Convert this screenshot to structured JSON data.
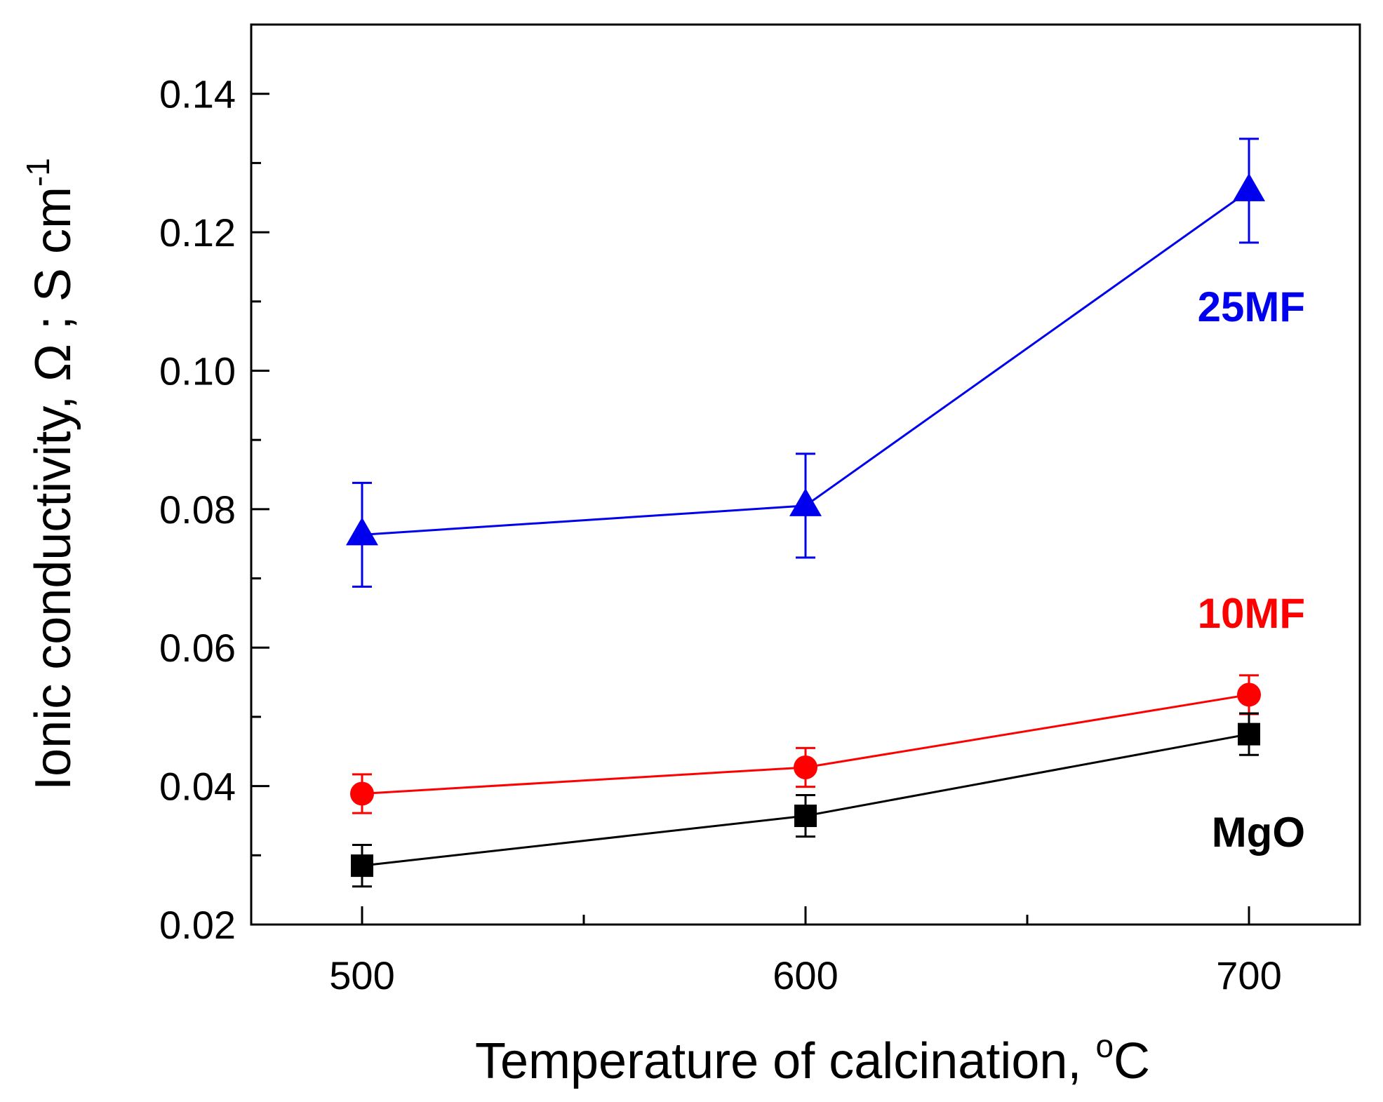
{
  "chart_data": {
    "type": "line",
    "x": [
      500,
      600,
      700
    ],
    "xlim": [
      475,
      725
    ],
    "ylim": [
      0.02,
      0.15
    ],
    "x_ticks": [
      500,
      600,
      700
    ],
    "x_minor_ticks": [
      550,
      650
    ],
    "y_ticks": [
      0.02,
      0.04,
      0.06,
      0.08,
      0.1,
      0.12,
      0.14
    ],
    "y_tick_labels": [
      "0.02",
      "0.04",
      "0.06",
      "0.08",
      "0.10",
      "0.12",
      "0.14"
    ],
    "y_minor_ticks": [
      0.03,
      0.05,
      0.07,
      0.09,
      0.11,
      0.13
    ],
    "xlabel": "Temperature of calcination, ",
    "xlabel_sup": "o",
    "xlabel_tail": "C",
    "ylabel": "Ionic conductivity, Ω ; S cm",
    "ylabel_sup": "-1",
    "grid": false,
    "series": [
      {
        "name": "25MF",
        "color": "#0000ee",
        "marker": "triangle",
        "values": [
          0.0763,
          0.0805,
          0.126
        ],
        "errors": [
          0.0075,
          0.0075,
          0.0075
        ]
      },
      {
        "name": "10MF",
        "color": "#ff0000",
        "marker": "circle",
        "values": [
          0.0389,
          0.0427,
          0.0532
        ],
        "errors": [
          0.0028,
          0.0028,
          0.0028
        ]
      },
      {
        "name": "MgO",
        "color": "#000000",
        "marker": "square",
        "values": [
          0.0285,
          0.0357,
          0.0475
        ],
        "errors": [
          0.003,
          0.003,
          0.003
        ]
      }
    ]
  }
}
